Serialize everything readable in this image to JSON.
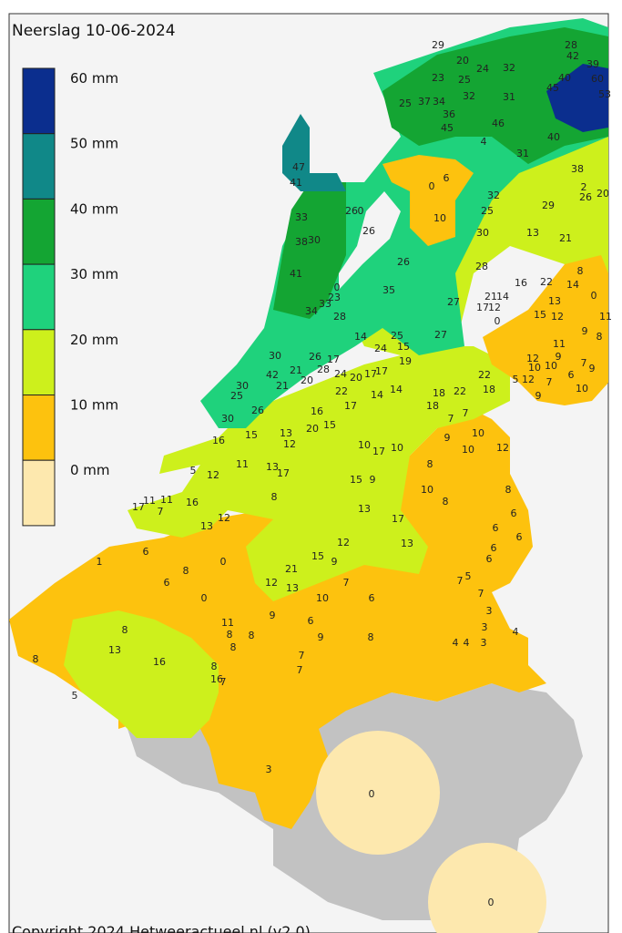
{
  "title": "Neerslag 10-06-2024",
  "legend": [
    {
      "label": "60 mm",
      "color": "#0b2e8e"
    },
    {
      "label": "50 mm",
      "color": "#108888"
    },
    {
      "label": "40 mm",
      "color": "#14a533"
    },
    {
      "label": "30 mm",
      "color": "#1fd27c"
    },
    {
      "label": "20 mm",
      "color": "#cdf01c"
    },
    {
      "label": "10 mm",
      "color": "#fdc20e"
    },
    {
      "label": "0 mm",
      "color": "#fde8ae"
    }
  ],
  "readings": [
    29,
    20,
    24,
    32,
    28,
    42,
    39,
    60,
    40,
    45,
    53,
    23,
    25,
    25,
    37,
    34,
    32,
    31,
    36,
    45,
    46,
    40,
    4,
    31,
    38,
    47,
    41,
    2,
    26,
    20,
    0,
    6,
    32,
    25,
    10,
    29,
    33,
    26,
    0,
    26,
    38,
    30,
    30,
    13,
    21,
    26,
    28,
    8,
    41,
    16,
    22,
    14,
    0,
    23,
    35,
    27,
    21,
    14,
    17,
    12,
    13,
    0,
    11,
    33,
    34,
    28,
    15,
    12,
    0,
    14,
    25,
    15,
    27,
    9,
    8,
    24,
    11,
    30,
    26,
    17,
    19,
    12,
    9,
    10,
    7,
    9,
    10,
    6,
    42,
    21,
    28,
    24,
    20,
    17,
    17,
    22,
    5,
    12,
    7,
    20,
    21,
    30,
    25,
    22,
    14,
    14,
    18,
    22,
    18,
    9,
    10,
    18,
    17,
    26,
    30,
    16,
    7,
    7,
    20,
    15,
    13,
    12,
    16,
    15,
    9,
    10,
    10,
    10,
    17,
    10,
    12,
    5,
    12,
    11,
    13,
    17,
    8,
    15,
    9,
    10,
    8,
    17,
    11,
    11,
    16,
    7,
    8,
    8,
    13,
    6,
    17,
    13,
    12,
    6,
    6,
    12,
    13,
    6,
    6,
    1,
    0,
    15,
    9,
    6,
    21,
    8,
    5,
    6,
    7,
    12,
    13,
    7,
    0,
    10,
    6,
    7,
    3,
    9,
    6,
    11,
    8,
    3,
    4,
    8,
    8,
    9,
    8,
    4,
    4,
    3,
    8,
    13,
    7,
    16,
    8,
    7,
    8,
    16,
    7,
    5,
    3,
    0,
    0
  ],
  "copyright": "Copyright 2024 Hetweeractueel.nl (v2.0)"
}
